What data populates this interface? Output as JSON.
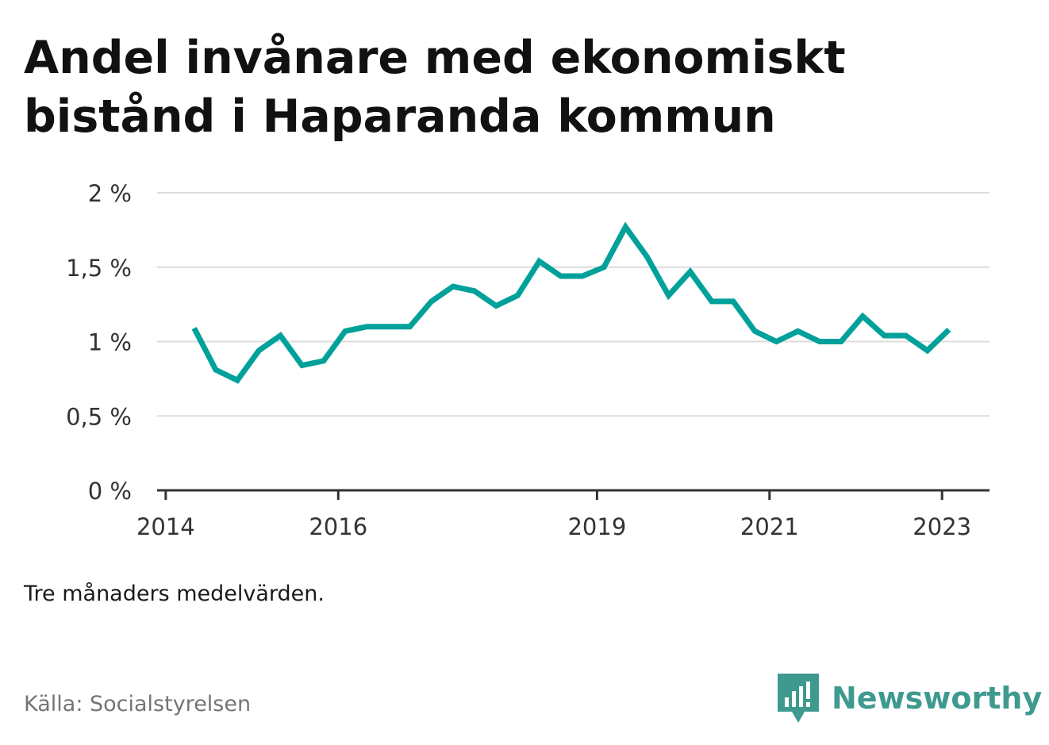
{
  "title": "Andel invånare med ekonomiskt bistånd i Haparanda kommun",
  "note": "Tre månaders medelvärden.",
  "source": "Källa: Socialstyrelsen",
  "brand": {
    "name": "Newsworthy",
    "icon": "bar-chart-speech-bubble-icon",
    "color": "#3e9a8f"
  },
  "chart_data": {
    "type": "line",
    "line_color": "#00a19a",
    "grid": true,
    "y_ticks": [
      0,
      0.5,
      1,
      1.5,
      2
    ],
    "y_tick_labels": [
      "0 %",
      "0,5 %",
      "1 %",
      "1,5 %",
      "2 %"
    ],
    "ylim": [
      0,
      2
    ],
    "x_ticks": [
      2014,
      2016,
      2019,
      2021,
      2023
    ],
    "x_tick_labels": [
      "2014",
      "2016",
      "2019",
      "2021",
      "2023"
    ],
    "xlim": [
      2013.9,
      2023.55
    ],
    "series": [
      {
        "x": [
          2014.33,
          2014.58,
          2014.83,
          2015.08,
          2015.33,
          2015.58,
          2015.83,
          2016.08,
          2016.33,
          2016.58,
          2016.83,
          2017.08,
          2017.33,
          2017.58,
          2017.83,
          2018.08,
          2018.33,
          2018.58,
          2018.83,
          2019.08,
          2019.33,
          2019.58,
          2019.83,
          2020.08,
          2020.33,
          2020.58,
          2020.83,
          2021.08,
          2021.33,
          2021.58,
          2021.83,
          2022.08,
          2022.33,
          2022.58,
          2022.83,
          2023.08
        ],
        "values": [
          1.09,
          0.81,
          0.74,
          0.94,
          1.04,
          0.84,
          0.87,
          1.07,
          1.1,
          1.1,
          1.1,
          1.27,
          1.37,
          1.34,
          1.24,
          1.31,
          1.54,
          1.44,
          1.44,
          1.5,
          1.77,
          1.57,
          1.31,
          1.47,
          1.27,
          1.27,
          1.07,
          1.0,
          1.07,
          1.0,
          1.0,
          1.17,
          1.04,
          1.04,
          0.94,
          1.08
        ]
      }
    ]
  }
}
